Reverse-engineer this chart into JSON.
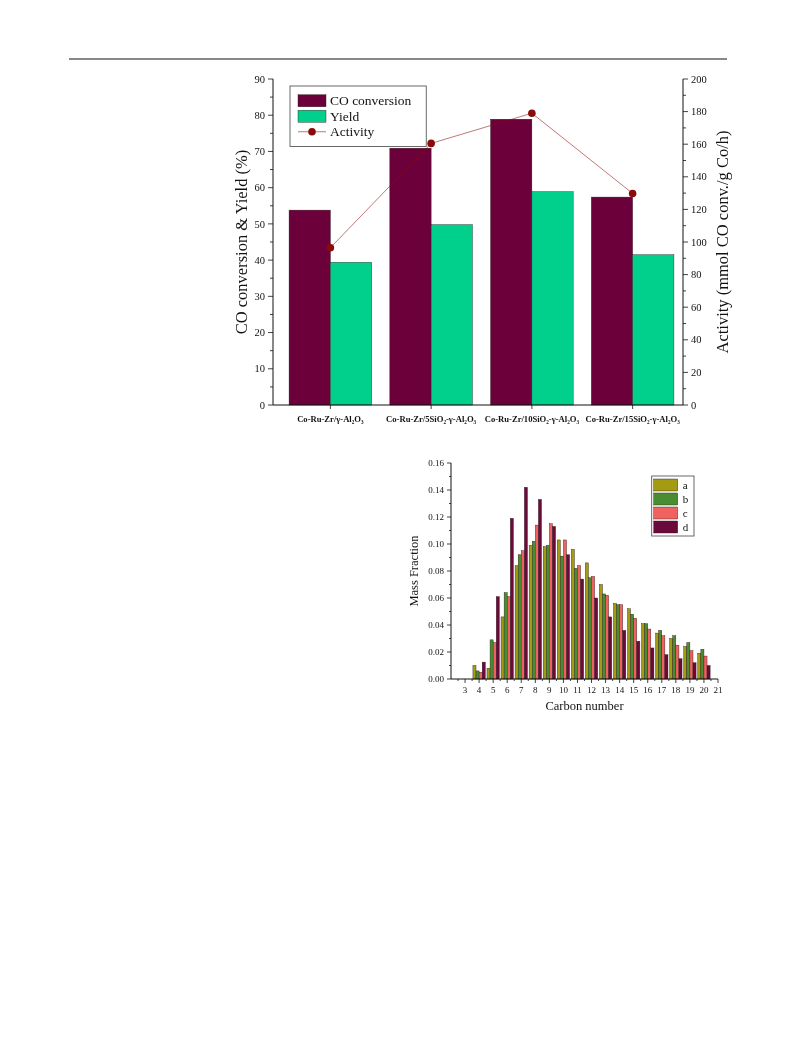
{
  "chart_data": [
    {
      "type": "bar",
      "ylabel": "CO conversion & Yield (%)",
      "y2label": "Activity (mmol CO conv./g Co/h)",
      "categories": [
        "Co-Ru-Zr/γ-Al₂O₃",
        "Co-Ru-Zr/5SiO₂-γ-Al₂O₃",
        "Co-Ru-Zr/10SiO₂-γ-Al₂O₃",
        "Co-Ru-Zr/15SiO₂-γ-Al₂O₃"
      ],
      "series": [
        {
          "name": "CO conversion",
          "color": "#6b003a",
          "values": [
            53.8,
            70.9,
            78.9,
            57.4
          ]
        },
        {
          "name": "Yield",
          "color": "#00d08c",
          "values": [
            39.4,
            49.8,
            58.9,
            41.5
          ]
        },
        {
          "name": "Activity",
          "type": "line",
          "axis": "y2",
          "color": "#8b0a0a",
          "values": [
            96.5,
            160.5,
            179,
            129.8
          ]
        }
      ],
      "ylim": [
        0,
        90
      ],
      "yticks": [
        0,
        {
          "value": 5,
          "label": null
        },
        10,
        {
          "value": 15,
          "label": null
        },
        20,
        {
          "value": 25,
          "label": null
        },
        30,
        {
          "value": 35,
          "label": null
        },
        40,
        {
          "value": 45,
          "label": null
        },
        50,
        {
          "value": 55,
          "label": null
        },
        60,
        {
          "value": 65,
          "label": null
        },
        70,
        {
          "value": 75,
          "label": null
        },
        80,
        {
          "value": 85,
          "label": null
        },
        90
      ],
      "y2lim": [
        0,
        200
      ],
      "y2ticks": [
        0,
        {
          "value": 10,
          "label": null
        },
        20,
        {
          "value": 30,
          "label": null
        },
        40,
        {
          "value": 50,
          "label": null
        },
        60,
        {
          "value": 70,
          "label": null
        },
        80,
        {
          "value": 90,
          "label": null
        },
        100,
        {
          "value": 110,
          "label": null
        },
        120,
        {
          "value": 130,
          "label": null
        },
        140,
        {
          "value": 150,
          "label": null
        },
        160,
        {
          "value": 170,
          "label": null
        },
        180,
        {
          "value": 190,
          "label": null
        },
        200
      ],
      "legend": "top left",
      "marker": "circle"
    },
    {
      "type": "bar",
      "xlabel": "Carbon number",
      "ylabel": "Mass Fraction",
      "x": [
        4,
        5,
        6,
        7,
        8,
        9,
        10,
        11,
        12,
        13,
        14,
        15,
        16,
        17,
        18,
        19,
        20
      ],
      "series": [
        {
          "name": "a",
          "color": "#a39b12",
          "values": [
            0.01,
            0.008,
            0.046,
            0.084,
            0.099,
            0.098,
            0.103,
            0.096,
            0.086,
            0.07,
            0.056,
            0.052,
            0.041,
            0.034,
            0.03,
            0.024,
            0.019
          ]
        },
        {
          "name": "b",
          "color": "#4a8c32",
          "values": [
            0.006,
            0.029,
            0.064,
            0.092,
            0.102,
            0.099,
            0.091,
            0.082,
            0.075,
            0.063,
            0.055,
            0.048,
            0.041,
            0.036,
            0.032,
            0.027,
            0.022
          ]
        },
        {
          "name": "c",
          "color": "#ef6260",
          "values": [
            0.005,
            0.027,
            0.061,
            0.095,
            0.114,
            0.115,
            0.103,
            0.084,
            0.076,
            0.062,
            0.055,
            0.045,
            0.037,
            0.032,
            0.025,
            0.021,
            0.017
          ]
        },
        {
          "name": "d",
          "color": "#6b0a3a",
          "values": [
            0.0125,
            0.061,
            0.119,
            0.142,
            0.133,
            0.113,
            0.092,
            0.074,
            0.06,
            0.046,
            0.036,
            0.028,
            0.023,
            0.018,
            0.015,
            0.012,
            0.01
          ]
        }
      ],
      "xlim": [
        2,
        21
      ],
      "xticks": [
        {
          "value": 2.5,
          "label": null
        },
        3,
        {
          "value": 3.5,
          "label": null
        },
        4,
        {
          "value": 4.5,
          "label": null
        },
        5,
        {
          "value": 5.5,
          "label": null
        },
        6,
        {
          "value": 6.5,
          "label": null
        },
        7,
        {
          "value": 7.5,
          "label": null
        },
        8,
        {
          "value": 8.5,
          "label": null
        },
        9,
        {
          "value": 9.5,
          "label": null
        },
        10,
        {
          "value": 10.5,
          "label": null
        },
        11,
        {
          "value": 11.5,
          "label": null
        },
        12,
        {
          "value": 12.5,
          "label": null
        },
        13,
        {
          "value": 13.5,
          "label": null
        },
        14,
        {
          "value": 14.5,
          "label": null
        },
        15,
        {
          "value": 15.5,
          "label": null
        },
        16,
        {
          "value": 16.5,
          "label": null
        },
        17,
        {
          "value": 17.5,
          "label": null
        },
        18,
        {
          "value": 18.5,
          "label": null
        },
        19,
        {
          "value": 19.5,
          "label": null
        },
        20,
        {
          "value": 20.5,
          "label": null
        },
        21
      ],
      "ylim": [
        0,
        0.16
      ],
      "yticks": [
        {
          "value": 0,
          "label": "0.00"
        },
        {
          "value": 0.01,
          "label": null
        },
        {
          "value": 0.02,
          "label": "0.02"
        },
        {
          "value": 0.03,
          "label": null
        },
        {
          "value": 0.04,
          "label": "0.04"
        },
        {
          "value": 0.05,
          "label": null
        },
        {
          "value": 0.06,
          "label": "0.06"
        },
        {
          "value": 0.07,
          "label": null
        },
        {
          "value": 0.08,
          "label": "0.08"
        },
        {
          "value": 0.09,
          "label": null
        },
        {
          "value": 0.1,
          "label": "0.10"
        },
        {
          "value": 0.11,
          "label": null
        },
        {
          "value": 0.12,
          "label": "0.12"
        },
        {
          "value": 0.13,
          "label": null
        },
        {
          "value": 0.14,
          "label": "0.14"
        },
        {
          "value": 0.15,
          "label": null
        },
        {
          "value": 0.16,
          "label": "0.16"
        }
      ],
      "legend": "top right"
    }
  ]
}
